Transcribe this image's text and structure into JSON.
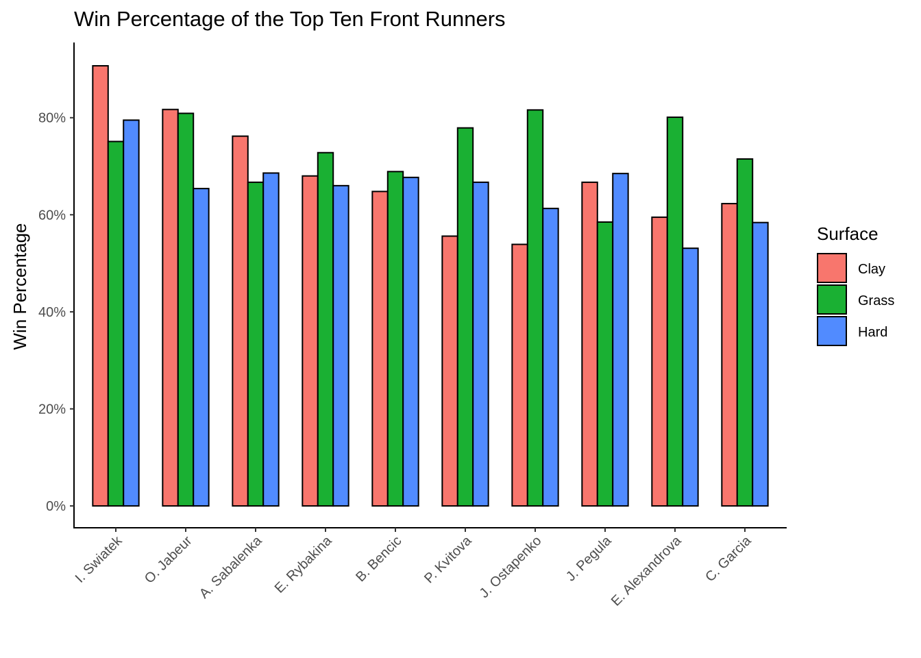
{
  "chart_data": {
    "type": "bar",
    "title": "Win Percentage of the Top Ten Front Runners",
    "xlabel": "",
    "ylabel": "Win Percentage",
    "ylim": [
      -0.045,
      0.955
    ],
    "yticks": [
      0,
      0.2,
      0.4,
      0.6,
      0.8
    ],
    "ytick_labels": [
      "0%",
      "20%",
      "40%",
      "60%",
      "80%"
    ],
    "grid": false,
    "legend": {
      "title": "Surface",
      "position": "right"
    },
    "categories": [
      "I. Swiatek",
      "O. Jabeur",
      "A. Sabalenka",
      "E. Rybakina",
      "B. Bencic",
      "P. Kvitova",
      "J. Ostapenko",
      "J. Pegula",
      "E. Alexandrova",
      "C. Garcia"
    ],
    "series": [
      {
        "name": "Clay",
        "color": "#F8766D",
        "values": [
          0.907,
          0.817,
          0.762,
          0.68,
          0.648,
          0.556,
          0.539,
          0.667,
          0.595,
          0.623
        ]
      },
      {
        "name": "Grass",
        "color": "#1AB033",
        "values": [
          0.751,
          0.809,
          0.667,
          0.728,
          0.689,
          0.779,
          0.816,
          0.585,
          0.801,
          0.715
        ]
      },
      {
        "name": "Hard",
        "color": "#518BFF",
        "values": [
          0.795,
          0.654,
          0.686,
          0.66,
          0.677,
          0.667,
          0.613,
          0.685,
          0.531,
          0.584
        ]
      }
    ]
  }
}
